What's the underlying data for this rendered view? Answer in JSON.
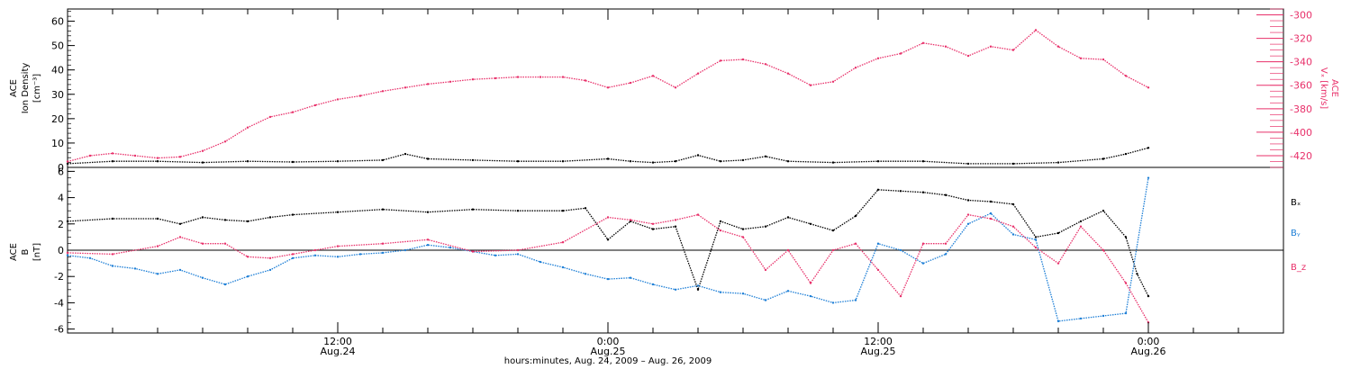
{
  "chart_data": [
    {
      "type": "scatter",
      "panel": "top",
      "left_axis": {
        "label_lines": [
          "ACE",
          "Ion Density",
          "[cm⁻³]"
        ],
        "ylim": [
          0,
          65
        ],
        "ticks": [
          0,
          10,
          20,
          30,
          40,
          50,
          60
        ],
        "color": "#000000"
      },
      "right_axis": {
        "label_lines": [
          "ACE",
          "Vₓ [km/s]"
        ],
        "ylim": [
          -430,
          -295
        ],
        "ticks": [
          -420,
          -400,
          -380,
          -360,
          -340,
          -320,
          -300
        ],
        "color": "#e8306a"
      },
      "xlim_hours": [
        0,
        54
      ],
      "series": [
        {
          "axis": "left",
          "color": "#000000",
          "points": [
            [
              0,
              1.5
            ],
            [
              2,
              2.5
            ],
            [
              4,
              2.5
            ],
            [
              6,
              2.0
            ],
            [
              8,
              2.5
            ],
            [
              10,
              2.2
            ],
            [
              12,
              2.5
            ],
            [
              14,
              3.0
            ],
            [
              15,
              5.5
            ],
            [
              16,
              3.5
            ],
            [
              18,
              3.0
            ],
            [
              20,
              2.5
            ],
            [
              22,
              2.5
            ],
            [
              24,
              3.5
            ],
            [
              25,
              2.5
            ],
            [
              26,
              2.0
            ],
            [
              27,
              2.5
            ],
            [
              28,
              5.0
            ],
            [
              29,
              2.5
            ],
            [
              30,
              3.0
            ],
            [
              31,
              4.5
            ],
            [
              32,
              2.5
            ],
            [
              34,
              2.0
            ],
            [
              36,
              2.5
            ],
            [
              38,
              2.5
            ],
            [
              40,
              1.5
            ],
            [
              42,
              1.5
            ],
            [
              44,
              2.0
            ],
            [
              46,
              3.5
            ],
            [
              47,
              5.5
            ],
            [
              48,
              8.0
            ]
          ]
        },
        {
          "axis": "right",
          "color": "#e8306a",
          "points": [
            [
              0,
              -425
            ],
            [
              1,
              -420
            ],
            [
              2,
              -418
            ],
            [
              3,
              -420
            ],
            [
              4,
              -422
            ],
            [
              5,
              -421
            ],
            [
              6,
              -416
            ],
            [
              7,
              -408
            ],
            [
              8,
              -396
            ],
            [
              9,
              -387
            ],
            [
              10,
              -383
            ],
            [
              11,
              -377
            ],
            [
              12,
              -372
            ],
            [
              13,
              -369
            ],
            [
              14,
              -365
            ],
            [
              15,
              -362
            ],
            [
              16,
              -359
            ],
            [
              17,
              -357
            ],
            [
              18,
              -355
            ],
            [
              19,
              -354
            ],
            [
              20,
              -353
            ],
            [
              21,
              -353
            ],
            [
              22,
              -353
            ],
            [
              23,
              -356
            ],
            [
              24,
              -362
            ],
            [
              25,
              -358
            ],
            [
              26,
              -352
            ],
            [
              27,
              -362
            ],
            [
              28,
              -350
            ],
            [
              29,
              -339
            ],
            [
              30,
              -338
            ],
            [
              31,
              -342
            ],
            [
              32,
              -350
            ],
            [
              33,
              -360
            ],
            [
              34,
              -357
            ],
            [
              35,
              -345
            ],
            [
              36,
              -337
            ],
            [
              37,
              -333
            ],
            [
              38,
              -324
            ],
            [
              39,
              -327
            ],
            [
              40,
              -335
            ],
            [
              41,
              -327
            ],
            [
              42,
              -330
            ],
            [
              43,
              -313
            ],
            [
              44,
              -327
            ],
            [
              45,
              -337
            ],
            [
              46,
              -338
            ],
            [
              47,
              -352
            ],
            [
              48,
              -362
            ]
          ]
        }
      ]
    },
    {
      "type": "scatter",
      "panel": "bottom",
      "left_axis": {
        "label_lines": [
          "ACE",
          "B",
          "[nT]"
        ],
        "ylim": [
          -6.3,
          6.3
        ],
        "ticks": [
          -6,
          -4,
          -2,
          0,
          2,
          4,
          6
        ],
        "color": "#000000"
      },
      "zero_line": true,
      "xlim_hours": [
        0,
        54
      ],
      "legend_position": "right",
      "series": [
        {
          "name": "Bₓ",
          "axis": "left",
          "color": "#000000",
          "points": [
            [
              0,
              2.2
            ],
            [
              2,
              2.4
            ],
            [
              4,
              2.4
            ],
            [
              5,
              2.0
            ],
            [
              6,
              2.5
            ],
            [
              7,
              2.3
            ],
            [
              8,
              2.2
            ],
            [
              9,
              2.5
            ],
            [
              10,
              2.7
            ],
            [
              12,
              2.9
            ],
            [
              14,
              3.1
            ],
            [
              16,
              2.9
            ],
            [
              18,
              3.1
            ],
            [
              20,
              3.0
            ],
            [
              22,
              3.0
            ],
            [
              23,
              3.2
            ],
            [
              24,
              0.8
            ],
            [
              25,
              2.2
            ],
            [
              26,
              1.6
            ],
            [
              27,
              1.8
            ],
            [
              28,
              -3.0
            ],
            [
              29,
              2.2
            ],
            [
              30,
              1.6
            ],
            [
              31,
              1.8
            ],
            [
              32,
              2.5
            ],
            [
              33,
              2.0
            ],
            [
              34,
              1.5
            ],
            [
              35,
              2.6
            ],
            [
              36,
              4.6
            ],
            [
              37,
              4.5
            ],
            [
              38,
              4.4
            ],
            [
              39,
              4.2
            ],
            [
              40,
              3.8
            ],
            [
              41,
              3.7
            ],
            [
              42,
              3.5
            ],
            [
              43,
              1.0
            ],
            [
              44,
              1.3
            ],
            [
              45,
              2.2
            ],
            [
              46,
              3.0
            ],
            [
              47,
              1.0
            ],
            [
              47.5,
              -1.8
            ],
            [
              48,
              -3.5
            ]
          ]
        },
        {
          "name": "Bᵧ",
          "axis": "left",
          "color": "#1c7ed6",
          "points": [
            [
              0,
              -0.4
            ],
            [
              1,
              -0.6
            ],
            [
              2,
              -1.2
            ],
            [
              3,
              -1.4
            ],
            [
              4,
              -1.8
            ],
            [
              5,
              -1.5
            ],
            [
              6,
              -2.1
            ],
            [
              7,
              -2.6
            ],
            [
              8,
              -2.0
            ],
            [
              9,
              -1.5
            ],
            [
              10,
              -0.6
            ],
            [
              11,
              -0.4
            ],
            [
              12,
              -0.5
            ],
            [
              13,
              -0.3
            ],
            [
              14,
              -0.2
            ],
            [
              15,
              0.0
            ],
            [
              16,
              0.4
            ],
            [
              17,
              0.2
            ],
            [
              18,
              -0.1
            ],
            [
              19,
              -0.4
            ],
            [
              20,
              -0.3
            ],
            [
              21,
              -0.9
            ],
            [
              22,
              -1.3
            ],
            [
              23,
              -1.8
            ],
            [
              24,
              -2.2
            ],
            [
              25,
              -2.1
            ],
            [
              26,
              -2.6
            ],
            [
              27,
              -3.0
            ],
            [
              28,
              -2.7
            ],
            [
              29,
              -3.2
            ],
            [
              30,
              -3.3
            ],
            [
              31,
              -3.8
            ],
            [
              32,
              -3.1
            ],
            [
              33,
              -3.5
            ],
            [
              34,
              -4.0
            ],
            [
              35,
              -3.8
            ],
            [
              36,
              0.5
            ],
            [
              37,
              0.0
            ],
            [
              38,
              -1.0
            ],
            [
              39,
              -0.3
            ],
            [
              40,
              2.0
            ],
            [
              41,
              2.8
            ],
            [
              42,
              1.2
            ],
            [
              43,
              0.8
            ],
            [
              44,
              -5.4
            ],
            [
              45,
              -5.2
            ],
            [
              46,
              -5.0
            ],
            [
              47,
              -4.8
            ],
            [
              48,
              5.5
            ]
          ]
        },
        {
          "name": "B_z",
          "axis": "left",
          "color": "#e8306a",
          "points": [
            [
              0,
              -0.2
            ],
            [
              2,
              -0.3
            ],
            [
              4,
              0.3
            ],
            [
              5,
              1.0
            ],
            [
              6,
              0.5
            ],
            [
              7,
              0.5
            ],
            [
              8,
              -0.5
            ],
            [
              9,
              -0.6
            ],
            [
              10,
              -0.3
            ],
            [
              11,
              0.0
            ],
            [
              12,
              0.3
            ],
            [
              14,
              0.5
            ],
            [
              16,
              0.8
            ],
            [
              18,
              -0.1
            ],
            [
              20,
              0.0
            ],
            [
              22,
              0.6
            ],
            [
              24,
              2.5
            ],
            [
              25,
              2.3
            ],
            [
              26,
              2.0
            ],
            [
              27,
              2.3
            ],
            [
              28,
              2.7
            ],
            [
              29,
              1.5
            ],
            [
              30,
              1.0
            ],
            [
              31,
              -1.5
            ],
            [
              32,
              0.0
            ],
            [
              33,
              -2.5
            ],
            [
              34,
              0.0
            ],
            [
              35,
              0.5
            ],
            [
              36,
              -1.5
            ],
            [
              37,
              -3.5
            ],
            [
              38,
              0.5
            ],
            [
              39,
              0.5
            ],
            [
              40,
              2.7
            ],
            [
              41,
              2.4
            ],
            [
              42,
              1.8
            ],
            [
              43,
              0.2
            ],
            [
              44,
              -1.0
            ],
            [
              45,
              1.8
            ],
            [
              46,
              0.0
            ],
            [
              47,
              -2.5
            ],
            [
              48,
              -5.5
            ]
          ]
        }
      ]
    }
  ],
  "x_axis": {
    "major_ticks": [
      {
        "hour": 12,
        "line1": "12:00",
        "line2": "Aug.24"
      },
      {
        "hour": 24,
        "line1": "0:00",
        "line2": "Aug.25"
      },
      {
        "hour": 36,
        "line1": "12:00",
        "line2": "Aug.25"
      },
      {
        "hour": 48,
        "line1": "0:00",
        "line2": "Aug.26"
      }
    ],
    "minor_tick_hours": [
      0,
      2,
      4,
      6,
      8,
      10,
      14,
      16,
      18,
      20,
      22,
      26,
      28,
      30,
      32,
      34,
      38,
      40,
      42,
      44,
      46,
      50,
      52,
      54
    ],
    "caption": "hours:minutes, Aug. 24, 2009 – Aug. 26, 2009"
  }
}
